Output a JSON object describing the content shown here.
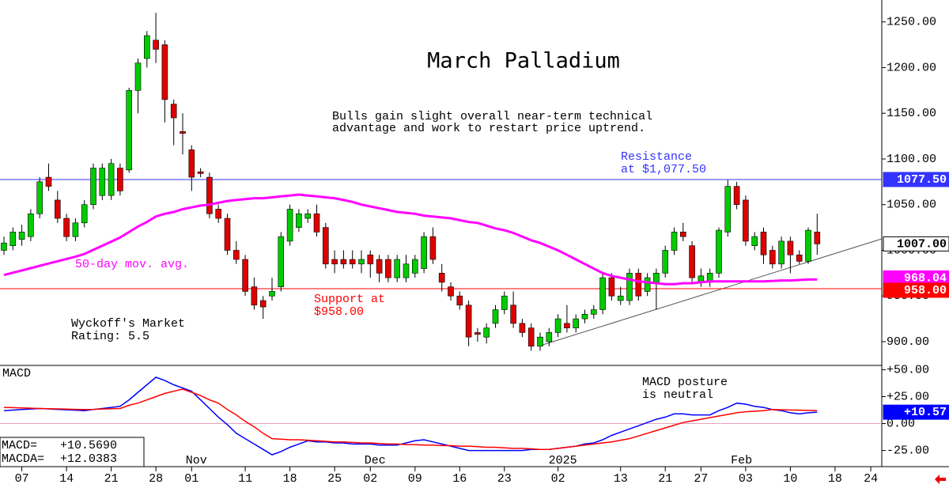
{
  "chart_data": [
    {
      "type": "candlestick",
      "title": "March Palladium",
      "subtitle": [
        "Bulls gain slight overall near-term technical",
        "advantage and work to restart price uptrend."
      ],
      "resistance": {
        "value": 1077.5,
        "label": "1077.50",
        "text": [
          "Resistance",
          "at $1,077.50"
        ],
        "color": "#3333ff"
      },
      "support": {
        "value": 958,
        "label": "958.00",
        "text": [
          "Support at",
          "$958.00"
        ],
        "color": "#ff0000"
      },
      "rating": [
        "Wyckoff's Market",
        "Rating: 5.5"
      ],
      "categories": [
        null,
        null,
        "07",
        null,
        null,
        null,
        null,
        "14",
        null,
        null,
        null,
        null,
        "21",
        null,
        null,
        null,
        null,
        "28",
        null,
        null,
        null,
        "01",
        null,
        null,
        null,
        null,
        null,
        "11",
        null,
        null,
        null,
        null,
        "18",
        null,
        null,
        null,
        null,
        "25",
        null,
        null,
        null,
        "02",
        null,
        null,
        null,
        null,
        "09",
        null,
        null,
        null,
        null,
        "16",
        null,
        null,
        null,
        null,
        "23",
        null,
        null,
        null,
        null,
        null,
        "02",
        null,
        null,
        null,
        null,
        null,
        null,
        "13",
        null,
        null,
        null,
        null,
        "21",
        null,
        null,
        null,
        "27",
        null,
        null,
        null,
        null,
        "03",
        null,
        null,
        null,
        null,
        "10",
        null,
        null,
        null,
        null,
        "18",
        null,
        null,
        null,
        "24"
      ],
      "months": [
        null,
        null,
        null,
        null,
        null,
        null,
        null,
        null,
        null,
        null,
        null,
        null,
        null,
        null,
        null,
        null,
        null,
        null,
        null,
        null,
        null,
        "Nov",
        null,
        null,
        null,
        null,
        null,
        null,
        null,
        null,
        null,
        null,
        null,
        null,
        null,
        null,
        null,
        null,
        null,
        null,
        null,
        "Dec",
        null,
        null,
        null,
        null,
        null,
        null,
        null,
        null,
        null,
        null,
        null,
        null,
        null,
        null,
        null,
        null,
        null,
        null,
        null,
        null,
        "2025",
        null,
        null,
        null,
        null,
        null,
        null,
        null,
        null,
        null,
        null,
        null,
        null,
        null,
        null,
        null,
        null,
        null,
        null,
        null,
        "Feb",
        null,
        null,
        null,
        null,
        null,
        null,
        null,
        null,
        null,
        null,
        null,
        null,
        null,
        null
      ],
      "open": [
        1000,
        1005,
        1012,
        1015,
        1040,
        1080,
        1055,
        1035,
        1015,
        1030,
        1050,
        1060,
        1060,
        1090,
        1088,
        1175,
        1210,
        1230,
        1225,
        1160,
        1130,
        1110,
        1086,
        1080,
        1045,
        1035,
        1000,
        990,
        960,
        945,
        950,
        960,
        1010,
        1025,
        1035,
        1040,
        1025,
        990,
        990,
        990,
        985,
        995,
        990,
        990,
        970,
        970,
        975,
        980,
        1015,
        975,
        960,
        950,
        940,
        910,
        905,
        920,
        935,
        940,
        920,
        915,
        895,
        900,
        910,
        920,
        915,
        925,
        930,
        935,
        970,
        945,
        945,
        975,
        955,
        965,
        975,
        1000,
        1020,
        1005,
        965,
        965,
        975,
        1020,
        1070,
        1055,
        1005,
        1020,
        1000,
        985,
        1010,
        995,
        988,
        1020,
        null,
        null,
        null,
        null,
        null,
        null
      ],
      "high": [
        1015,
        1025,
        1028,
        1045,
        1080,
        1095,
        1065,
        1040,
        1035,
        1055,
        1095,
        1095,
        1100,
        1095,
        1178,
        1210,
        1240,
        1260,
        1230,
        1165,
        1150,
        1115,
        1090,
        1085,
        1050,
        1040,
        1010,
        995,
        970,
        950,
        970,
        1020,
        1050,
        1045,
        1045,
        1050,
        1030,
        1000,
        1000,
        1000,
        1000,
        1000,
        995,
        995,
        995,
        995,
        995,
        1020,
        1025,
        985,
        965,
        955,
        945,
        915,
        920,
        940,
        955,
        955,
        925,
        920,
        910,
        915,
        930,
        940,
        930,
        935,
        940,
        975,
        975,
        960,
        980,
        980,
        975,
        980,
        1005,
        1025,
        1030,
        1010,
        980,
        980,
        1025,
        1077,
        1075,
        1060,
        1020,
        1025,
        1005,
        1015,
        1015,
        1000,
        1025,
        1040,
        null,
        null,
        null,
        null,
        null,
        null
      ],
      "low": [
        995,
        1000,
        1005,
        1010,
        1035,
        1065,
        1030,
        1010,
        1010,
        1025,
        1045,
        1055,
        1055,
        1060,
        1085,
        1150,
        1200,
        1205,
        1140,
        1115,
        1105,
        1065,
        1080,
        1035,
        1030,
        995,
        985,
        950,
        935,
        925,
        945,
        955,
        1005,
        1020,
        1030,
        1015,
        980,
        975,
        980,
        980,
        975,
        970,
        965,
        965,
        965,
        965,
        970,
        975,
        985,
        955,
        945,
        935,
        895,
        900,
        898,
        915,
        930,
        915,
        905,
        890,
        890,
        895,
        905,
        910,
        910,
        920,
        925,
        930,
        945,
        940,
        940,
        945,
        950,
        935,
        970,
        995,
        1010,
        965,
        960,
        960,
        970,
        1015,
        1045,
        1005,
        1000,
        985,
        980,
        980,
        975,
        985,
        985,
        995,
        null,
        null,
        null,
        null,
        null,
        null
      ],
      "close": [
        1008,
        1020,
        1020,
        1040,
        1075,
        1070,
        1035,
        1015,
        1030,
        1050,
        1090,
        1090,
        1095,
        1065,
        1175,
        1205,
        1235,
        1220,
        1165,
        1145,
        1128,
        1080,
        1084,
        1040,
        1035,
        1000,
        990,
        955,
        940,
        938,
        955,
        1015,
        1045,
        1040,
        1040,
        1020,
        985,
        985,
        985,
        985,
        990,
        985,
        975,
        970,
        990,
        985,
        990,
        1015,
        990,
        965,
        950,
        940,
        905,
        908,
        915,
        935,
        950,
        920,
        910,
        895,
        905,
        910,
        925,
        915,
        925,
        930,
        935,
        970,
        950,
        950,
        975,
        950,
        970,
        975,
        1000,
        1020,
        1015,
        970,
        972,
        975,
        1022,
        1070,
        1050,
        1010,
        1015,
        995,
        985,
        1010,
        995,
        988,
        1022,
        1007,
        null,
        null,
        null,
        null,
        null,
        null
      ],
      "close_last_label": "1007.00",
      "series": [
        {
          "name": "50-day mov. avg.",
          "color": "#ff00ff",
          "last_label": "968.04",
          "values": [
            973,
            975.5,
            978,
            980.5,
            983,
            985.5,
            988,
            990.5,
            993,
            996,
            1000.5,
            1005,
            1009.5,
            1014,
            1020,
            1026,
            1031,
            1037,
            1040,
            1042,
            1045,
            1047,
            1049,
            1050,
            1052,
            1054,
            1055,
            1056,
            1057,
            1057,
            1058,
            1059,
            1060,
            1061,
            1060,
            1059,
            1058,
            1057,
            1055,
            1053,
            1050,
            1048,
            1046,
            1044,
            1042,
            1041,
            1040,
            1038,
            1037,
            1036,
            1035,
            1033,
            1031,
            1030,
            1027,
            1024,
            1022,
            1019,
            1015,
            1011,
            1008,
            1004,
            1000,
            995,
            990,
            985,
            980,
            975,
            972,
            970,
            968,
            966,
            965,
            964,
            963,
            963,
            964,
            964,
            965,
            966,
            966,
            966,
            966,
            966,
            966,
            966,
            966.5,
            967,
            967,
            967.5,
            968,
            968.04,
            null,
            null,
            null,
            null,
            null,
            null
          ]
        }
      ],
      "up_color": "#00cc00",
      "down_color": "#dd0000",
      "ylim": [
        874,
        1274
      ],
      "yticks": [
        {
          "value": 900,
          "label": "900.00"
        },
        {
          "value": 950,
          "label": "950.00"
        },
        {
          "value": 1000,
          "label": "1000.00"
        },
        {
          "value": 1050,
          "label": "1050.00"
        },
        {
          "value": 1100,
          "label": "1100.00"
        },
        {
          "value": 1150,
          "label": "1150.00"
        },
        {
          "value": 1200,
          "label": "1200.00"
        },
        {
          "value": 1250,
          "label": "1250.00"
        }
      ]
    },
    {
      "type": "line",
      "title": "MACD",
      "annotation": [
        "MACD posture",
        "is neutral"
      ],
      "readouts": [
        {
          "label": "MACD=",
          "value": "+10.5690"
        },
        {
          "label": "MACDA=",
          "value": "+12.0383"
        }
      ],
      "last_label": "+10.57",
      "series": [
        {
          "name": "MACD",
          "color": "#0000ff",
          "values": [
            12,
            12.5,
            13,
            13.5,
            14,
            13.6,
            13.2,
            12.8,
            12.4,
            12,
            13,
            14,
            15,
            16,
            22,
            29,
            36,
            43,
            40,
            36,
            33,
            30,
            22,
            14,
            6,
            -1,
            -9,
            -14,
            -19,
            -24,
            -29,
            -26,
            -22,
            -19,
            -16,
            -17,
            -17,
            -18,
            -18,
            -19,
            -19,
            -19,
            -20,
            -20,
            -20,
            -18,
            -16,
            -15,
            -17,
            -19,
            -21,
            -23,
            -25,
            -25,
            -25,
            -25,
            -25,
            -25,
            -25,
            -24,
            -24,
            -24,
            -23,
            -22,
            -21,
            -19,
            -18,
            -15,
            -11,
            -8,
            -5,
            -2,
            1,
            4,
            6,
            9,
            9,
            8,
            8,
            8,
            12,
            15,
            19,
            18,
            16,
            15,
            13,
            12,
            10,
            9,
            10,
            10.569,
            null,
            null,
            null,
            null,
            null,
            null
          ]
        },
        {
          "name": "MACDA",
          "color": "#ff0000",
          "values": [
            15,
            14.8,
            14.6,
            14.3,
            14,
            13.8,
            13.6,
            13.4,
            13.2,
            13,
            13.2,
            13.5,
            13.8,
            14,
            17,
            19,
            22,
            25,
            28,
            30,
            32,
            29,
            26,
            22,
            19,
            13,
            8,
            2,
            -3,
            -9,
            -14,
            -14.5,
            -15,
            -15,
            -15.5,
            -16,
            -16.5,
            -17,
            -17,
            -17.5,
            -18,
            -18,
            -18.5,
            -19,
            -19,
            -19.5,
            -19.5,
            -20,
            -20,
            -20.5,
            -20.5,
            -21,
            -21,
            -21.5,
            -22,
            -22,
            -22.5,
            -23,
            -23,
            -23.5,
            -24,
            -24,
            -23,
            -22,
            -21,
            -20,
            -19,
            -18,
            -17,
            -15.5,
            -14,
            -11.5,
            -9,
            -6.5,
            -4,
            -1.5,
            1,
            2.5,
            4,
            5.5,
            7,
            8.5,
            10,
            11,
            11.5,
            12,
            13,
            12.8,
            12.6,
            12.4,
            12.2,
            12.0383,
            null,
            null,
            null,
            null,
            null,
            null
          ]
        }
      ],
      "ylim": [
        -40,
        54
      ],
      "yticks": [
        {
          "value": 50,
          "label": "+50.00"
        },
        {
          "value": 25,
          "label": "+25.00"
        },
        {
          "value": 0,
          "label": "0.00"
        },
        {
          "value": -25,
          "label": "-25.00"
        }
      ]
    }
  ]
}
